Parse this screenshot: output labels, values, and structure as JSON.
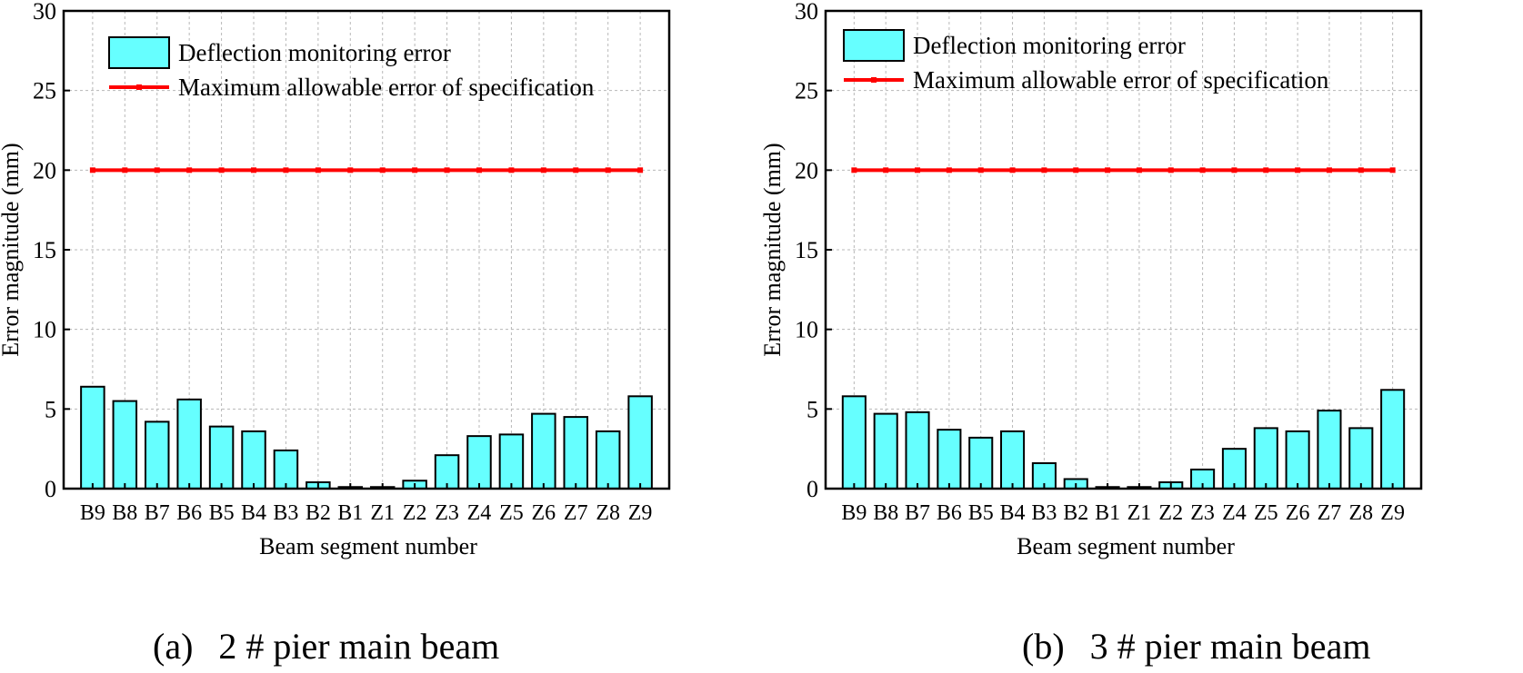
{
  "colors": {
    "bar_fill": "#66ffff",
    "spec_line": "#ff0000",
    "grid": "#b8b8b8",
    "axis": "#000000"
  },
  "legend": {
    "bar_label": "Deflection monitoring error",
    "line_label": "Maximum allowable error of specification"
  },
  "chart_data": [
    {
      "type": "bar",
      "panel": "(a)",
      "caption_label": "(a)",
      "caption_text": "2 # pier main beam",
      "categories": [
        "B9",
        "B8",
        "B7",
        "B6",
        "B5",
        "B4",
        "B3",
        "B2",
        "B1",
        "Z1",
        "Z2",
        "Z3",
        "Z4",
        "Z5",
        "Z6",
        "Z7",
        "Z8",
        "Z9"
      ],
      "series": [
        {
          "name": "Deflection monitoring error",
          "values": [
            6.4,
            5.5,
            4.2,
            5.6,
            3.9,
            3.6,
            2.4,
            0.4,
            0.1,
            0.1,
            0.5,
            2.1,
            3.3,
            3.4,
            4.7,
            4.5,
            3.6,
            5.8
          ]
        },
        {
          "name": "Maximum allowable error of specification",
          "type": "line",
          "values": [
            20,
            20,
            20,
            20,
            20,
            20,
            20,
            20,
            20,
            20,
            20,
            20,
            20,
            20,
            20,
            20,
            20,
            20
          ]
        }
      ],
      "xlabel": "Beam segment number",
      "ylabel": "Error magnitude (mm)",
      "ylim": [
        0,
        30
      ],
      "yticks": [
        0,
        5,
        10,
        15,
        20,
        25,
        30
      ],
      "grid": true,
      "legend_position": "top-left"
    },
    {
      "type": "bar",
      "panel": "(b)",
      "caption_label": "(b)",
      "caption_text": "3 # pier main beam",
      "categories": [
        "B9",
        "B8",
        "B7",
        "B6",
        "B5",
        "B4",
        "B3",
        "B2",
        "B1",
        "Z1",
        "Z2",
        "Z3",
        "Z4",
        "Z5",
        "Z6",
        "Z7",
        "Z8",
        "Z9"
      ],
      "series": [
        {
          "name": "Deflection monitoring error",
          "values": [
            5.8,
            4.7,
            4.8,
            3.7,
            3.2,
            3.6,
            1.6,
            0.6,
            0.1,
            0.1,
            0.4,
            1.2,
            2.5,
            3.8,
            3.6,
            4.9,
            3.8,
            6.2
          ]
        },
        {
          "name": "Maximum allowable error of specification",
          "type": "line",
          "values": [
            20,
            20,
            20,
            20,
            20,
            20,
            20,
            20,
            20,
            20,
            20,
            20,
            20,
            20,
            20,
            20,
            20,
            20
          ]
        }
      ],
      "xlabel": "Beam segment number",
      "ylabel": "Error magnitude (mm)",
      "ylim": [
        0,
        30
      ],
      "yticks": [
        0,
        5,
        10,
        15,
        20,
        25,
        30
      ],
      "grid": true,
      "legend_position": "top-left"
    }
  ]
}
